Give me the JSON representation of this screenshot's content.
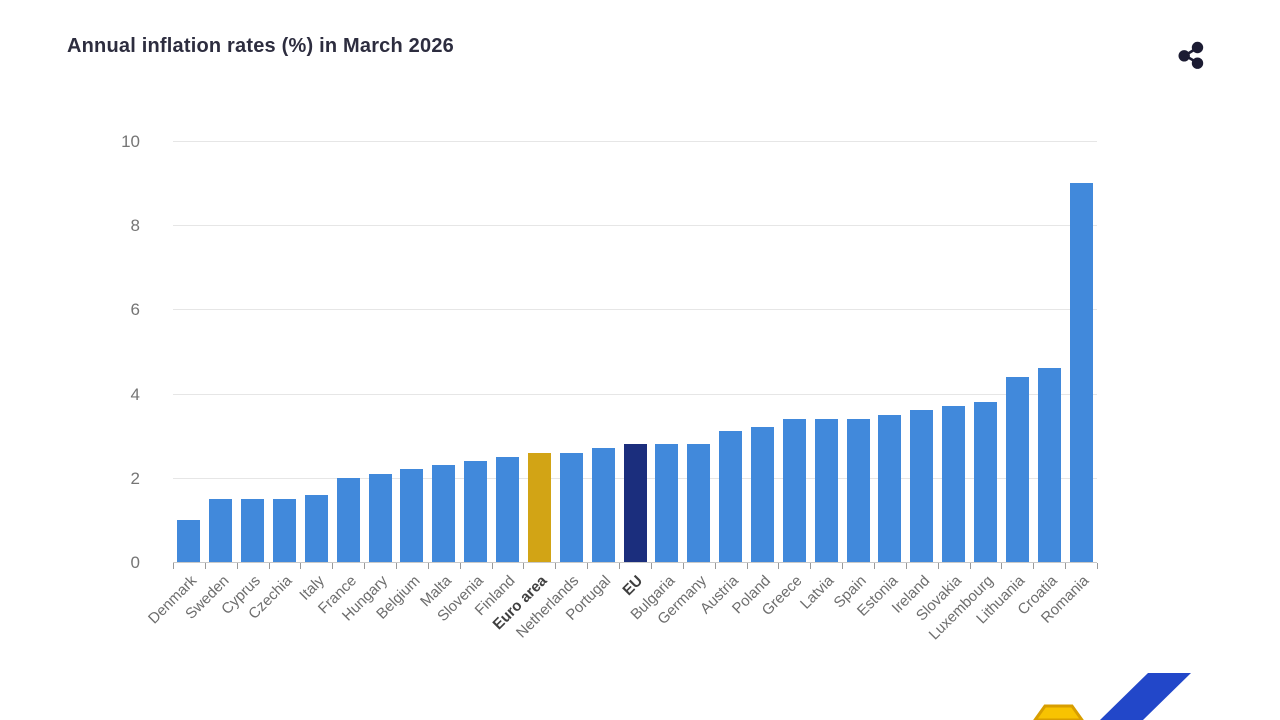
{
  "header": {
    "title": "Annual inflation rates (%) in March 2026",
    "share_icon": "share-icon"
  },
  "chart_data": {
    "type": "bar",
    "title": "Annual inflation rates (%) in March 2026",
    "xlabel": "",
    "ylabel": "",
    "ylim": [
      0,
      10
    ],
    "yticks": [
      0,
      2,
      4,
      6,
      8,
      10
    ],
    "grid": "horizontal",
    "legend_position": "none",
    "categories": [
      "Denmark",
      "Sweden",
      "Cyprus",
      "Czechia",
      "Italy",
      "France",
      "Hungary",
      "Belgium",
      "Malta",
      "Slovenia",
      "Finland",
      "Euro area",
      "Netherlands",
      "Portugal",
      "EU",
      "Bulgaria",
      "Germany",
      "Austria",
      "Poland",
      "Greece",
      "Latvia",
      "Spain",
      "Estonia",
      "Ireland",
      "Slovakia",
      "Luxembourg",
      "Lithuania",
      "Croatia",
      "Romania"
    ],
    "values": [
      1.0,
      1.5,
      1.5,
      1.5,
      1.6,
      2.0,
      2.1,
      2.2,
      2.3,
      2.4,
      2.5,
      2.6,
      2.6,
      2.7,
      2.8,
      2.8,
      2.8,
      3.1,
      3.2,
      3.4,
      3.4,
      3.4,
      3.5,
      3.6,
      3.7,
      3.8,
      4.4,
      4.6,
      9.0
    ],
    "emphasized_categories": [
      "Euro area",
      "EU"
    ],
    "colors": {
      "default_bar": "#4189DB",
      "euro_area_bar": "#D2A415",
      "eu_bar": "#1B2E7D",
      "gridline": "#e6e6e6",
      "axis": "#c9c9c9",
      "tick": "#9a9a9a",
      "y_label": "#757575",
      "x_label": "#6d6d6d",
      "title": "#2d2d3f"
    }
  },
  "logo": {
    "name": "eurostat-logo-fragment",
    "blue": "#2247C9",
    "yellow": "#F8C301",
    "yellow_edge": "#D89E00"
  }
}
